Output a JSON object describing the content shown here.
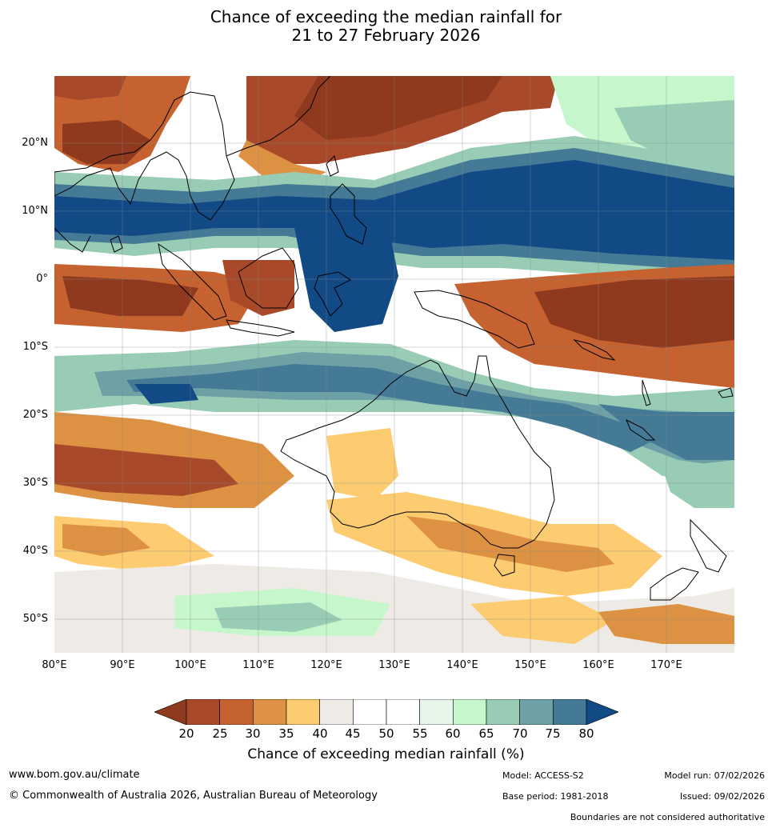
{
  "title": {
    "line1": "Chance of exceeding the median rainfall for",
    "line2": "21 to 27 February 2026"
  },
  "map": {
    "lat_labels": [
      "20°N",
      "10°N",
      "0°",
      "10°S",
      "20°S",
      "30°S",
      "40°S",
      "50°S"
    ],
    "lon_labels": [
      "80°E",
      "90°E",
      "100°E",
      "110°E",
      "120°E",
      "130°E",
      "140°E",
      "150°E",
      "160°E",
      "170°E"
    ],
    "lon_range": [
      80,
      180
    ],
    "lat_range": [
      -55,
      30
    ]
  },
  "legend": {
    "ticks": [
      "20",
      "25",
      "30",
      "35",
      "40",
      "45",
      "50",
      "55",
      "60",
      "65",
      "70",
      "75",
      "80"
    ],
    "colors": [
      "#8f3a1f",
      "#a84a2a",
      "#c5622f",
      "#dd9143",
      "#fdcb70",
      "#eeebe7",
      "#ffffff",
      "#ffffff",
      "#e8f6ea",
      "#c6f7cc",
      "#98ccb5",
      "#6ea1a6",
      "#457a97",
      "#124a85"
    ],
    "label": "Chance of exceeding median rainfall (%)"
  },
  "footer": {
    "website": "www.bom.gov.au/climate",
    "copyright": "© Commonwealth of Australia 2026, Australian Bureau of Meteorology",
    "model": "Model: ACCESS-S2",
    "model_run": "Model run: 07/02/2026",
    "base_period": "Base period: 1981-2018",
    "issued": "Issued: 09/02/2026",
    "disclaimer": "Boundaries are not considered authoritative"
  }
}
